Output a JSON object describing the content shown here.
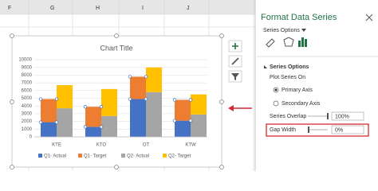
{
  "chart_data": {
    "type": "bar",
    "title": "Chart Title",
    "categories": [
      "KTE",
      "KTO",
      "OT",
      "KTW"
    ],
    "series": [
      {
        "name": "Q1- Actual",
        "color": "#4472c4",
        "values": [
          1900,
          1300,
          4900,
          2100
        ]
      },
      {
        "name": "Q1- Target",
        "color": "#ed7d31",
        "values": [
          3000,
          2600,
          2900,
          2700
        ]
      },
      {
        "name": "Q2- Actual",
        "color": "#a5a5a5",
        "values": [
          3700,
          2700,
          5800,
          2900
        ]
      },
      {
        "name": "Q2- Target",
        "color": "#ffc000",
        "values": [
          3000,
          3500,
          3200,
          2600
        ]
      }
    ],
    "ylim": [
      0,
      10000
    ],
    "yticks": [
      0,
      1000,
      2000,
      3000,
      4000,
      5000,
      6000,
      7000,
      8000,
      9000,
      10000
    ],
    "grid": true,
    "legend": "bottom"
  },
  "ui": {
    "columns": [
      "F",
      "G",
      "H",
      "I",
      "J"
    ],
    "pane": {
      "title": "Format Data Series",
      "menu": "Series Options",
      "section": "Series Options",
      "plot_on": "Plot Series On",
      "primary": "Primary Axis",
      "secondary": "Secondary Axis",
      "overlap_label": "Series Overlap",
      "overlap_value": "100%",
      "gap_label": "Gap Width",
      "gap_value": "0%"
    }
  }
}
